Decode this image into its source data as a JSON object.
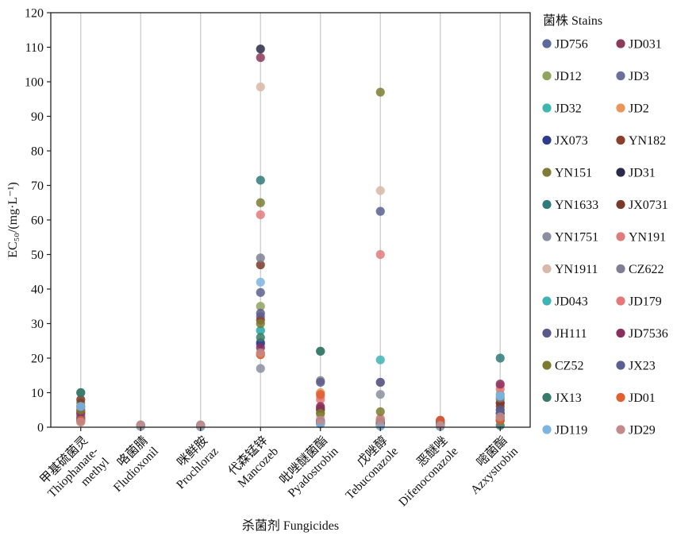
{
  "chart_data": {
    "type": "scatter",
    "ylabel": "EC₅₀/(mg·L⁻¹)",
    "xlabel": "杀菌剂 Fungicides",
    "ylim": [
      0,
      120
    ],
    "yticks": [
      0,
      10,
      20,
      30,
      40,
      50,
      60,
      70,
      80,
      90,
      100,
      110,
      120
    ],
    "grid": "vertical",
    "legend_position": "right",
    "legend_title": "菌株 Stains",
    "categories": [
      {
        "zh": "甲基硫菌灵",
        "en": [
          "Thiophanate-",
          "methyl"
        ]
      },
      {
        "zh": "咯菌腈",
        "en": [
          "Fludioxonil"
        ]
      },
      {
        "zh": "咪鲜胺",
        "en": [
          "Prochloraz"
        ]
      },
      {
        "zh": "代森锰锌",
        "en": [
          "Mancozeb"
        ]
      },
      {
        "zh": "吡唑醚菌酯",
        "en": [
          "Pyadostrobin"
        ]
      },
      {
        "zh": "戊唑醇",
        "en": [
          "Tebuconazole"
        ]
      },
      {
        "zh": "恶醚唑",
        "en": [
          "Difenoconazole"
        ]
      },
      {
        "zh": "嘧菌酯",
        "en": [
          "Azxystrobin"
        ]
      }
    ],
    "series": [
      {
        "name": "JD756",
        "color": "#5a6a9a",
        "values": [
          4,
          0.5,
          0.4,
          24,
          1,
          1,
          0.5,
          4
        ]
      },
      {
        "name": "JD031",
        "color": "#8c3a5a",
        "values": [
          2.5,
          0.4,
          0.3,
          107,
          2,
          1.5,
          1,
          7
        ]
      },
      {
        "name": "JD12",
        "color": "#8ea45f",
        "values": [
          5,
          0.4,
          0.3,
          35,
          5,
          2,
          0.3,
          8
        ]
      },
      {
        "name": "JD3",
        "color": "#6a6f9c",
        "values": [
          3,
          0.5,
          0.5,
          32,
          1.5,
          0.8,
          0.4,
          5
        ]
      },
      {
        "name": "JD32",
        "color": "#3fb6b0",
        "values": [
          2,
          0.3,
          0.2,
          28,
          1.2,
          0.5,
          0.2,
          3
        ]
      },
      {
        "name": "JD2",
        "color": "#e8965a",
        "values": [
          1.5,
          0.3,
          0.3,
          21,
          10,
          0.6,
          0.5,
          2
        ]
      },
      {
        "name": "JX073",
        "color": "#2e3a8a",
        "values": [
          3,
          0.4,
          0.3,
          24.5,
          2,
          1,
          0.6,
          4
        ]
      },
      {
        "name": "YN182",
        "color": "#8a3f2a",
        "values": [
          6,
          0.5,
          0.5,
          31,
          5,
          1,
          2,
          6
        ]
      },
      {
        "name": "YN151",
        "color": "#7d7c35",
        "values": [
          7,
          0.3,
          0.2,
          65,
          4,
          97,
          0.8,
          3
        ]
      },
      {
        "name": "JD31",
        "color": "#2a2a4a",
        "values": [
          4.5,
          0.4,
          0.3,
          109.5,
          1,
          0.5,
          0.3,
          2
        ]
      },
      {
        "name": "YN1633",
        "color": "#2f7a7a",
        "values": [
          10,
          0.4,
          0.3,
          71.5,
          22,
          1,
          0.4,
          20
        ]
      },
      {
        "name": "JX0731",
        "color": "#7a3a2a",
        "values": [
          8,
          0.5,
          0.4,
          47,
          5.5,
          2,
          1,
          7
        ]
      },
      {
        "name": "YN1751",
        "color": "#8a8f9f",
        "values": [
          3.5,
          0.4,
          0.3,
          17,
          1,
          9.5,
          0.5,
          2.5
        ]
      },
      {
        "name": "YN191",
        "color": "#e07b7b",
        "values": [
          4.5,
          0.3,
          0.3,
          61.5,
          9,
          50,
          1,
          12
        ]
      },
      {
        "name": "YN1911",
        "color": "#d8b8a8",
        "values": [
          5.5,
          0.4,
          0.3,
          98.5,
          3,
          68.5,
          0.3,
          3
        ]
      },
      {
        "name": "CZ622",
        "color": "#7e7f92",
        "values": [
          2,
          0.3,
          0.4,
          49,
          13.5,
          13,
          0.4,
          8.5
        ]
      },
      {
        "name": "JD043",
        "color": "#3fb3b3",
        "values": [
          2,
          0.3,
          0.2,
          28,
          1.5,
          19.5,
          0.3,
          9.5
        ]
      },
      {
        "name": "JD179",
        "color": "#e57878",
        "values": [
          3,
          0.4,
          0.3,
          21.5,
          8,
          2.5,
          1.5,
          11
        ]
      },
      {
        "name": "JH111",
        "color": "#5a5a8a",
        "values": [
          2.5,
          0.3,
          0.3,
          33,
          13,
          13,
          1.5,
          5
        ]
      },
      {
        "name": "JD7536",
        "color": "#8a3060",
        "values": [
          4,
          0.3,
          0.2,
          23,
          6,
          1,
          1.8,
          12.5
        ]
      },
      {
        "name": "CZ52",
        "color": "#7a7a30",
        "values": [
          5,
          0.4,
          0.3,
          30,
          4,
          4.5,
          0.6,
          3
        ]
      },
      {
        "name": "JX23",
        "color": "#5a6090",
        "values": [
          6,
          0.4,
          0.3,
          39,
          1.5,
          62.5,
          0.6,
          4
        ]
      },
      {
        "name": "JX13",
        "color": "#3a7a6a",
        "values": [
          10,
          0.4,
          0.4,
          26,
          22,
          1.5,
          0.5,
          0.5
        ]
      },
      {
        "name": "JD01",
        "color": "#e06030",
        "values": [
          2,
          0.3,
          0.2,
          21,
          9.5,
          0.5,
          2,
          2
        ]
      },
      {
        "name": "JD119",
        "color": "#7eb5e0",
        "values": [
          6,
          0.3,
          0.2,
          42,
          1,
          0.3,
          0.3,
          9
        ]
      },
      {
        "name": "JD29",
        "color": "#c48a8a",
        "values": [
          1.5,
          0.7,
          0.7,
          21.5,
          2,
          2,
          0.5,
          3
        ]
      }
    ]
  }
}
